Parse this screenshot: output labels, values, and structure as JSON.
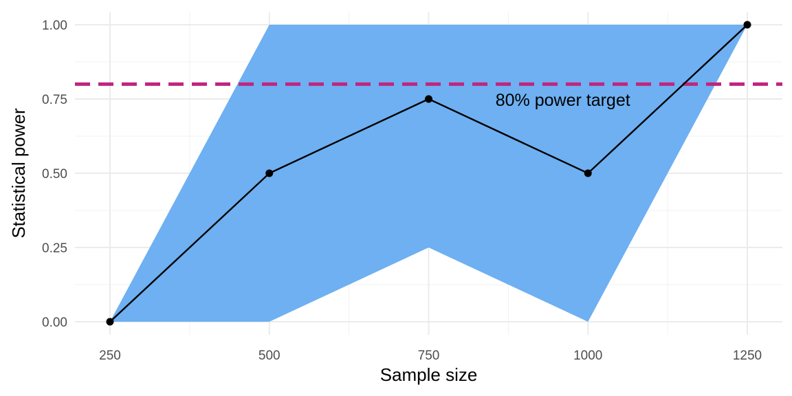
{
  "chart_data": {
    "type": "line",
    "xlabel": "Sample size",
    "ylabel": "Statistical power",
    "x_ticks": [
      250,
      500,
      750,
      1000,
      1250
    ],
    "x_tick_labels": [
      "250",
      "500",
      "750",
      "1000",
      "1250"
    ],
    "y_ticks": [
      0,
      0.25,
      0.5,
      0.75,
      1.0
    ],
    "y_tick_labels": [
      "0.00",
      "0.25",
      "0.50",
      "0.75",
      "1.00"
    ],
    "xlim": [
      195,
      1305
    ],
    "ylim": [
      0,
      1.0
    ],
    "grid": true,
    "series": [
      {
        "x": [
          250,
          500,
          750,
          1000,
          1250
        ],
        "y": [
          0,
          0.5,
          0.75,
          0.5,
          1.0
        ],
        "lower": [
          0,
          0,
          0.25,
          0,
          1.0
        ],
        "upper": [
          0,
          1.0,
          1.0,
          1.0,
          1.0
        ],
        "line_color": "#000000",
        "band_color": "#6eb0f1"
      }
    ],
    "reference_line": {
      "y": 0.8,
      "style": "dashed",
      "color": "#c0257f"
    },
    "annotations": [
      {
        "text": "80% power target",
        "x": 870,
        "y": 0.75
      }
    ]
  }
}
